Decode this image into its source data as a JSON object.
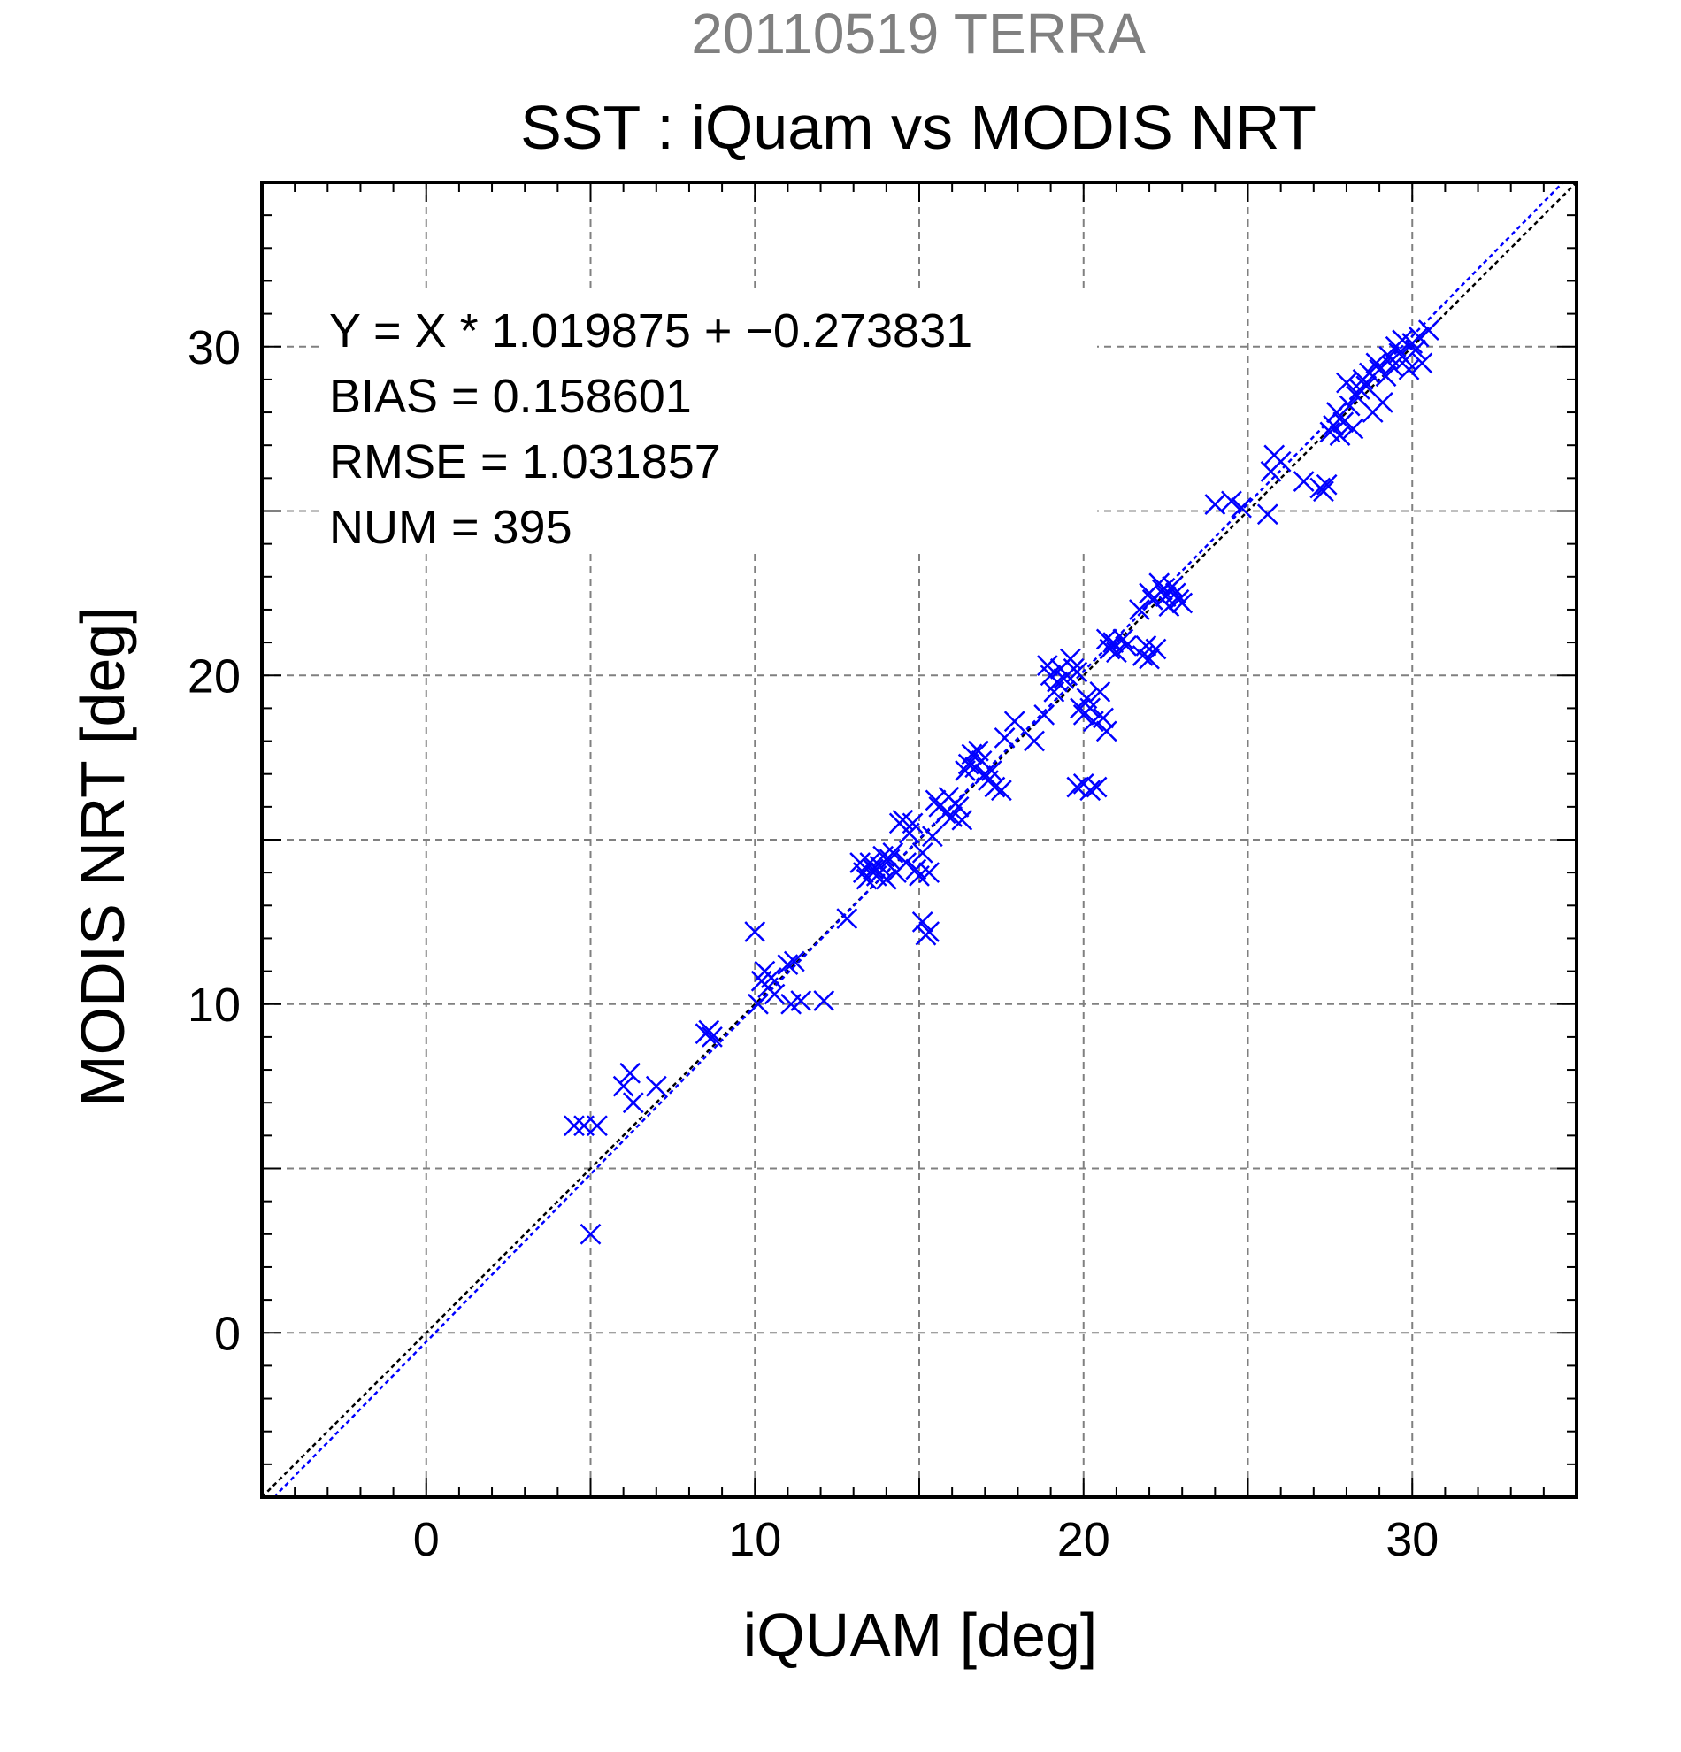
{
  "header": {
    "date_label": "20110519 TERRA",
    "title": "SST : iQuam vs MODIS NRT"
  },
  "stats": {
    "equation": "Y = X * 1.019875 + −0.273831",
    "bias": "BIAS = 0.158601",
    "rmse": "RMSE = 1.031857",
    "num": "NUM = 395"
  },
  "colors": {
    "points": "#0000ff",
    "fit_line": "#0000ff",
    "identity_line": "#000000",
    "date_label": "#808080",
    "grid": "#808080"
  },
  "chart_data": {
    "type": "scatter",
    "title": "SST : iQuam vs MODIS NRT",
    "subtitle": "20110519 TERRA",
    "xlabel": "iQUAM [deg]",
    "ylabel": "MODIS NRT [deg]",
    "xlim": [
      -5,
      35
    ],
    "ylim": [
      -5,
      35
    ],
    "xticks": [
      0,
      10,
      20,
      30
    ],
    "yticks": [
      0,
      10,
      20,
      30
    ],
    "grid": true,
    "grid_step": 5,
    "marker": "x",
    "regression": {
      "slope": 1.019875,
      "intercept": -0.273831
    },
    "identity_line": true,
    "points": [
      [
        4.5,
        6.3
      ],
      [
        4.8,
        6.3
      ],
      [
        5.0,
        3.0
      ],
      [
        5.2,
        6.3
      ],
      [
        6.0,
        7.5
      ],
      [
        6.2,
        7.9
      ],
      [
        6.3,
        7.0
      ],
      [
        7.0,
        7.5
      ],
      [
        8.5,
        9.1
      ],
      [
        8.6,
        9.2
      ],
      [
        8.7,
        9.0
      ],
      [
        10.0,
        12.2
      ],
      [
        10.1,
        10.0
      ],
      [
        10.2,
        10.7
      ],
      [
        10.3,
        11.0
      ],
      [
        10.4,
        10.5
      ],
      [
        10.5,
        10.8
      ],
      [
        10.6,
        10.3
      ],
      [
        11.0,
        11.2
      ],
      [
        11.1,
        10.0
      ],
      [
        11.2,
        11.3
      ],
      [
        11.4,
        10.1
      ],
      [
        12.1,
        10.1
      ],
      [
        12.8,
        12.6
      ],
      [
        13.2,
        14.3
      ],
      [
        13.3,
        14.0
      ],
      [
        13.4,
        13.8
      ],
      [
        13.5,
        14.3
      ],
      [
        13.6,
        14.1
      ],
      [
        13.7,
        13.9
      ],
      [
        13.8,
        14.2
      ],
      [
        13.9,
        14.5
      ],
      [
        14.0,
        13.8
      ],
      [
        14.1,
        14.4
      ],
      [
        14.2,
        14.6
      ],
      [
        14.3,
        14.0
      ],
      [
        14.4,
        15.5
      ],
      [
        14.5,
        15.6
      ],
      [
        14.6,
        14.3
      ],
      [
        14.7,
        15.2
      ],
      [
        14.8,
        15.5
      ],
      [
        14.9,
        14.1
      ],
      [
        15.0,
        13.9
      ],
      [
        15.1,
        14.6
      ],
      [
        15.1,
        12.5
      ],
      [
        15.2,
        12.1
      ],
      [
        15.3,
        12.2
      ],
      [
        15.3,
        14.0
      ],
      [
        15.4,
        15.1
      ],
      [
        15.5,
        16.2
      ],
      [
        15.6,
        16.0
      ],
      [
        15.8,
        15.8
      ],
      [
        15.9,
        16.3
      ],
      [
        16.0,
        15.7
      ],
      [
        16.1,
        16.1
      ],
      [
        16.2,
        16.0
      ],
      [
        16.3,
        15.6
      ],
      [
        16.4,
        17.1
      ],
      [
        16.5,
        17.3
      ],
      [
        16.6,
        17.6
      ],
      [
        16.7,
        17.2
      ],
      [
        16.8,
        17.7
      ],
      [
        16.9,
        17.4
      ],
      [
        17.0,
        17.0
      ],
      [
        17.1,
        16.8
      ],
      [
        17.2,
        17.1
      ],
      [
        17.3,
        16.6
      ],
      [
        17.5,
        16.5
      ],
      [
        17.6,
        18.1
      ],
      [
        17.9,
        18.6
      ],
      [
        18.5,
        18.0
      ],
      [
        18.8,
        18.8
      ],
      [
        18.9,
        20.3
      ],
      [
        19.0,
        20.0
      ],
      [
        19.1,
        19.5
      ],
      [
        19.2,
        19.8
      ],
      [
        19.3,
        20.2
      ],
      [
        19.4,
        19.9
      ],
      [
        19.5,
        20.0
      ],
      [
        19.6,
        20.5
      ],
      [
        19.7,
        20.2
      ],
      [
        19.8,
        20.1
      ],
      [
        19.8,
        16.6
      ],
      [
        19.9,
        19.0
      ],
      [
        20.0,
        16.7
      ],
      [
        20.0,
        18.8
      ],
      [
        20.1,
        19.3
      ],
      [
        20.2,
        19.0
      ],
      [
        20.2,
        16.5
      ],
      [
        20.3,
        18.6
      ],
      [
        20.4,
        16.6
      ],
      [
        20.5,
        19.5
      ],
      [
        20.6,
        18.7
      ],
      [
        20.7,
        18.3
      ],
      [
        20.7,
        21.1
      ],
      [
        20.8,
        20.8
      ],
      [
        20.9,
        21.0
      ],
      [
        21.0,
        20.7
      ],
      [
        21.2,
        21.1
      ],
      [
        21.3,
        20.9
      ],
      [
        21.7,
        22.0
      ],
      [
        21.8,
        20.6
      ],
      [
        21.9,
        20.9
      ],
      [
        22.0,
        22.5
      ],
      [
        22.0,
        20.5
      ],
      [
        22.1,
        22.3
      ],
      [
        22.2,
        20.8
      ],
      [
        22.3,
        22.8
      ],
      [
        22.4,
        22.6
      ],
      [
        22.5,
        22.4
      ],
      [
        22.6,
        22.1
      ],
      [
        22.7,
        22.7
      ],
      [
        22.8,
        22.5
      ],
      [
        22.9,
        22.3
      ],
      [
        23.0,
        22.2
      ],
      [
        24.0,
        25.2
      ],
      [
        24.5,
        25.3
      ],
      [
        24.8,
        25.1
      ],
      [
        25.6,
        24.9
      ],
      [
        25.7,
        26.2
      ],
      [
        25.8,
        26.7
      ],
      [
        26.0,
        26.5
      ],
      [
        26.7,
        25.9
      ],
      [
        27.2,
        25.7
      ],
      [
        27.3,
        25.6
      ],
      [
        27.4,
        25.8
      ],
      [
        27.5,
        27.4
      ],
      [
        27.6,
        27.6
      ],
      [
        27.7,
        28.0
      ],
      [
        27.8,
        27.3
      ],
      [
        27.9,
        27.7
      ],
      [
        28.0,
        28.9
      ],
      [
        28.1,
        28.2
      ],
      [
        28.2,
        27.5
      ],
      [
        28.3,
        28.5
      ],
      [
        28.4,
        28.7
      ],
      [
        28.5,
        29.0
      ],
      [
        28.6,
        28.8
      ],
      [
        28.7,
        29.2
      ],
      [
        28.8,
        28.0
      ],
      [
        28.9,
        29.5
      ],
      [
        29.0,
        29.3
      ],
      [
        29.1,
        28.3
      ],
      [
        29.2,
        29.1
      ],
      [
        29.3,
        29.7
      ],
      [
        29.4,
        29.4
      ],
      [
        29.5,
        30.0
      ],
      [
        29.6,
        29.8
      ],
      [
        29.7,
        30.2
      ],
      [
        29.8,
        29.6
      ],
      [
        29.9,
        29.3
      ],
      [
        30.0,
        30.1
      ],
      [
        30.1,
        29.9
      ],
      [
        30.2,
        30.3
      ],
      [
        30.3,
        29.5
      ],
      [
        30.5,
        30.5
      ]
    ]
  }
}
